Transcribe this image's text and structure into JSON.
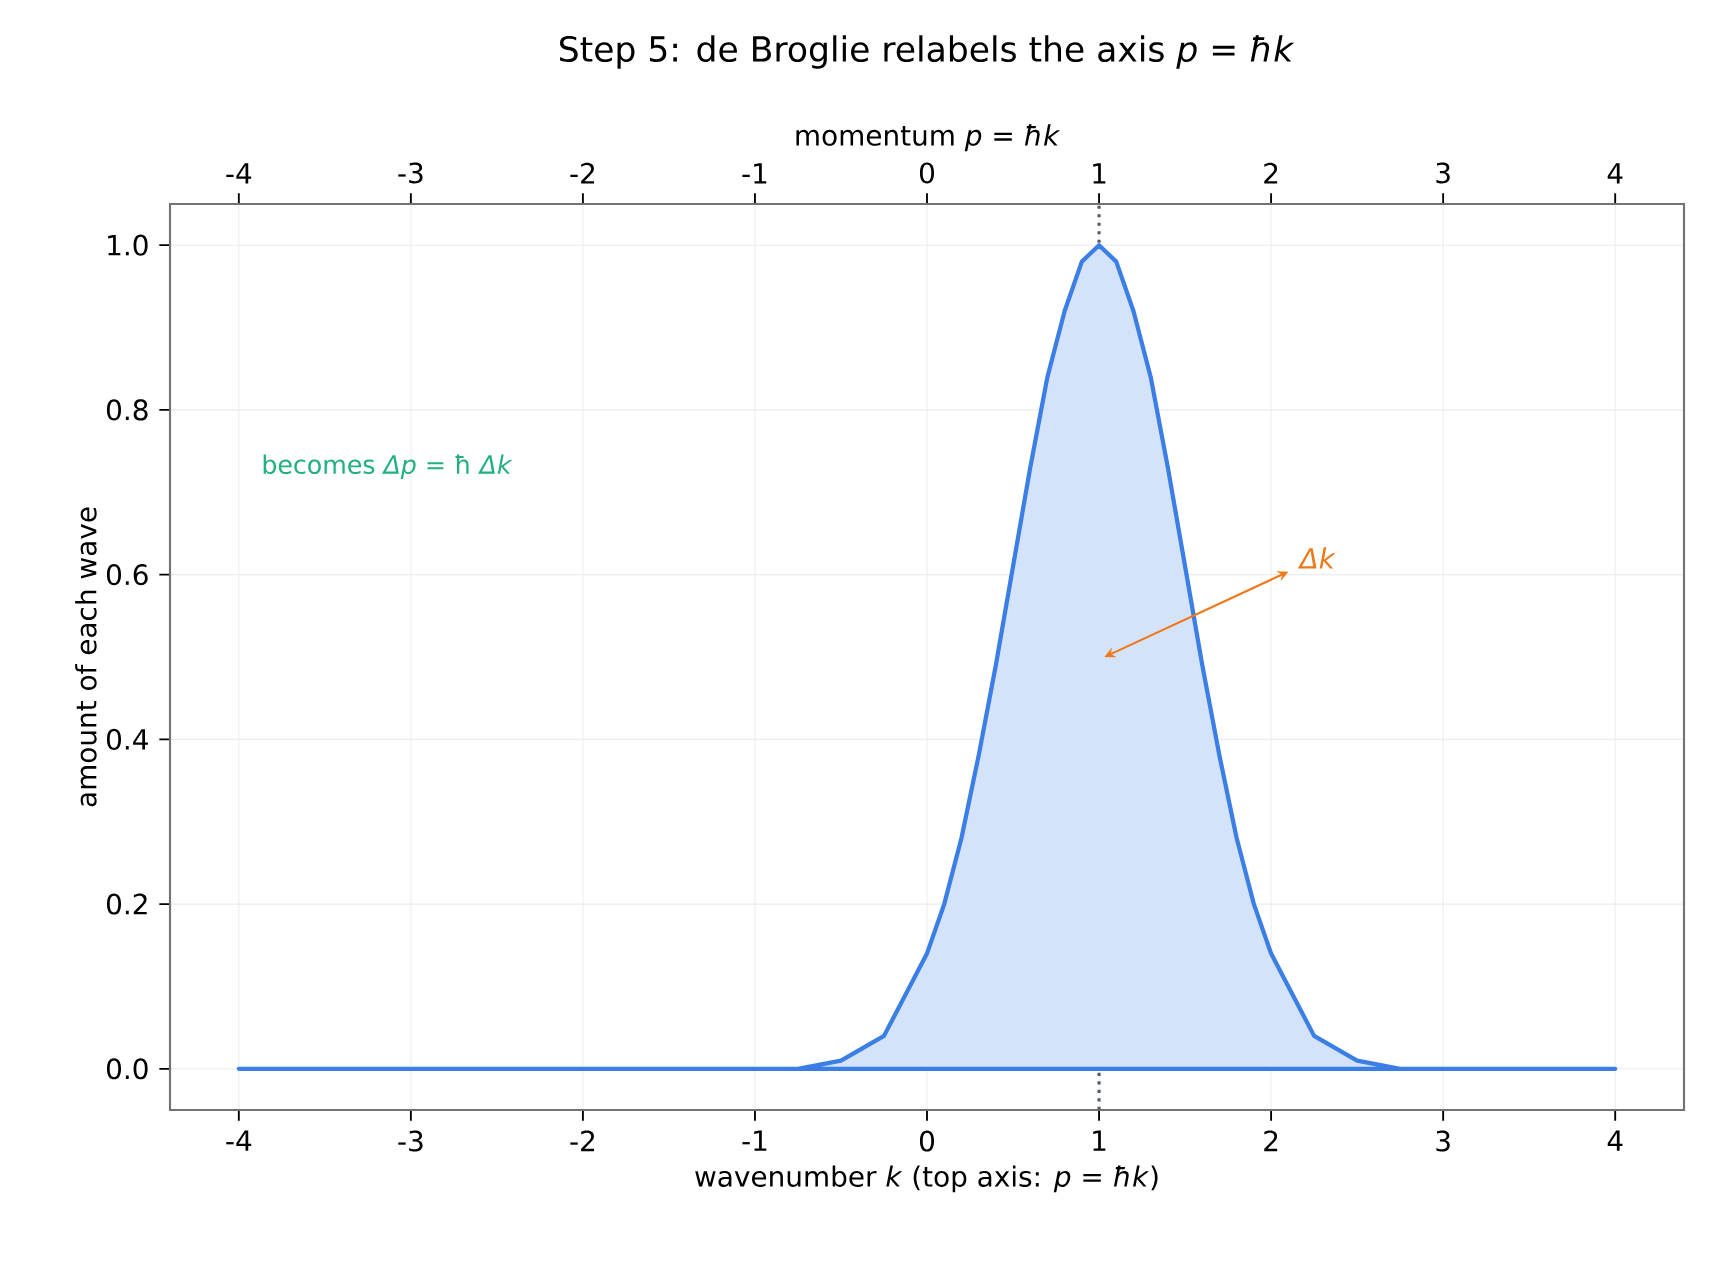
{
  "chart_data": {
    "type": "area",
    "title": "Step 5: de Broglie relabels the axis  *p* = *ħk*",
    "xlabel": "wavenumber *k*   (top axis: *p* = *ħk*)",
    "x2label": "momentum *p* = *ħk*",
    "ylabel": "amount of each wave",
    "x": [
      -4,
      -3,
      -2,
      -1,
      -0.75,
      -0.5,
      -0.25,
      0,
      0.1,
      0.2,
      0.3,
      0.4,
      0.5,
      0.6,
      0.7,
      0.8,
      0.9,
      1,
      1.1,
      1.2,
      1.3,
      1.4,
      1.5,
      1.6,
      1.7,
      1.8,
      1.9,
      2,
      2.25,
      2.5,
      2.75,
      3,
      4
    ],
    "series": [
      {
        "color": "#3b7fe6",
        "values": [
          0,
          0,
          0,
          0,
          0,
          0.01,
          0.04,
          0.14,
          0.2,
          0.28,
          0.38,
          0.49,
          0.61,
          0.73,
          0.84,
          0.92,
          0.98,
          1,
          0.98,
          0.92,
          0.84,
          0.73,
          0.61,
          0.49,
          0.38,
          0.28,
          0.2,
          0.14,
          0.04,
          0.01,
          0,
          0,
          0
        ]
      }
    ],
    "xlim": [
      -4.4,
      4.4
    ],
    "xticks": [
      -4,
      -3,
      -2,
      -1,
      0,
      1,
      2,
      3,
      4
    ],
    "x2lim": [
      -4.4,
      4.4
    ],
    "x2ticks": [
      -4,
      -3,
      -2,
      -1,
      0,
      1,
      2,
      3,
      4
    ],
    "ylim": [
      -0.05,
      1.05
    ],
    "yticks": [
      {
        "value": 0,
        "label": "0.0"
      },
      0.2,
      0.4,
      0.6,
      0.8,
      {
        "value": 1,
        "label": "1.0"
      }
    ],
    "grid": true,
    "ref_lines": [
      {
        "axis": "x",
        "value": 1,
        "color": "#555c6a",
        "line_style": "dotted"
      }
    ],
    "annotations": [
      "becomes *Δp* = ħ *Δk*",
      {
        "text": "*Δk*",
        "x": 1,
        "y": 0.5
      }
    ]
  }
}
